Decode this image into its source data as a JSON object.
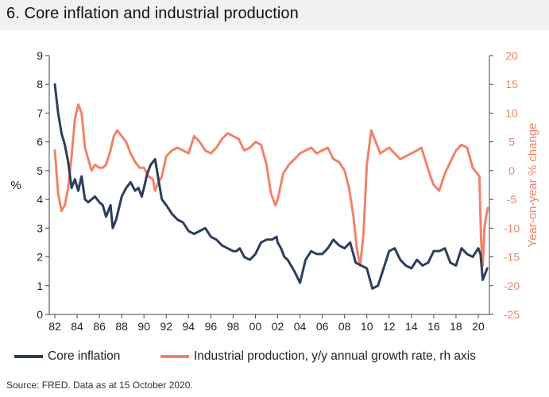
{
  "header": {
    "title": "6. Core inflation and industrial production"
  },
  "legend": {
    "items": [
      {
        "label": "Core inflation",
        "color": "#2d3e5c"
      },
      {
        "label": "Industrial production, y/y annual growth rate, rh axis",
        "color": "#f0836a"
      }
    ]
  },
  "footer": {
    "source": "Source: FRED. Data as at 15 October 2020."
  },
  "chart_data": {
    "type": "line",
    "title": "6. Core inflation and industrial production",
    "xlabel": "",
    "ylabel": "%",
    "y2label": "Year-on-year % change",
    "xlim": [
      1981.5,
      2021
    ],
    "ylim": [
      0,
      9
    ],
    "y2lim": [
      -25,
      20
    ],
    "grid": false,
    "legend_position": "bottom",
    "x_ticks": [
      1982,
      1984,
      1986,
      1988,
      1990,
      1992,
      1994,
      1996,
      1998,
      2000,
      2002,
      2004,
      2006,
      2008,
      2010,
      2012,
      2014,
      2016,
      2018,
      2020
    ],
    "x_tick_labels": [
      "82",
      "84",
      "86",
      "88",
      "90",
      "92",
      "94",
      "96",
      "98",
      "00",
      "02",
      "04",
      "06",
      "08",
      "10",
      "12",
      "14",
      "16",
      "18",
      "20"
    ],
    "y_ticks": [
      0,
      1,
      2,
      3,
      4,
      5,
      6,
      7,
      8,
      9
    ],
    "y_tick_labels": [
      "0",
      "1",
      "2",
      "3",
      "4",
      "5",
      "6",
      "7",
      "8",
      "9"
    ],
    "y2_ticks": [
      -25,
      -20,
      -15,
      -10,
      -5,
      0,
      5,
      10,
      15,
      20
    ],
    "y2_tick_labels": [
      "-25",
      "-20",
      "-15",
      "-10",
      "-5",
      "0",
      "5",
      "10",
      "15",
      "20"
    ],
    "series": [
      {
        "name": "Core inflation",
        "axis": "left",
        "color": "#2d3e5c",
        "x": [
          1982.0,
          1982.3,
          1982.6,
          1982.9,
          1983.2,
          1983.5,
          1983.8,
          1984.1,
          1984.4,
          1984.7,
          1985.0,
          1985.3,
          1985.6,
          1986.0,
          1986.3,
          1986.6,
          1987.0,
          1987.2,
          1987.5,
          1988.0,
          1988.4,
          1988.8,
          1989.2,
          1989.5,
          1989.8,
          1990.0,
          1990.3,
          1990.6,
          1991.0,
          1991.3,
          1991.6,
          1992.0,
          1992.5,
          1993.0,
          1993.5,
          1994.0,
          1994.5,
          1995.0,
          1995.5,
          1996.0,
          1996.5,
          1997.0,
          1997.5,
          1998.0,
          1998.3,
          1998.6,
          1999.0,
          1999.5,
          2000.0,
          2000.5,
          2001.0,
          2001.5,
          2001.9,
          2002.0,
          2002.3,
          2002.6,
          2002.9,
          2003.2,
          2003.5,
          2004.0,
          2004.5,
          2005.0,
          2005.5,
          2006.0,
          2006.5,
          2007.0,
          2007.5,
          2008.0,
          2008.5,
          2009.0,
          2009.5,
          2010.0,
          2010.5,
          2011.0,
          2011.5,
          2012.0,
          2012.5,
          2013.0,
          2013.5,
          2014.0,
          2014.5,
          2015.0,
          2015.5,
          2016.0,
          2016.5,
          2017.0,
          2017.5,
          2018.0,
          2018.5,
          2019.0,
          2019.5,
          2020.0,
          2020.2,
          2020.4,
          2020.6,
          2020.8
        ],
        "values": [
          8.0,
          7.0,
          6.3,
          5.9,
          5.3,
          4.4,
          4.7,
          4.3,
          4.8,
          4.0,
          3.9,
          4.0,
          4.1,
          3.9,
          3.8,
          3.4,
          3.8,
          3.0,
          3.3,
          4.1,
          4.4,
          4.6,
          4.3,
          4.4,
          4.1,
          4.4,
          4.9,
          5.2,
          5.4,
          4.7,
          4.0,
          3.8,
          3.5,
          3.3,
          3.2,
          2.9,
          2.8,
          2.9,
          3.0,
          2.7,
          2.6,
          2.4,
          2.3,
          2.2,
          2.2,
          2.3,
          2.0,
          1.9,
          2.1,
          2.5,
          2.6,
          2.6,
          2.7,
          2.5,
          2.3,
          2.0,
          1.9,
          1.7,
          1.5,
          1.1,
          1.9,
          2.2,
          2.1,
          2.1,
          2.3,
          2.6,
          2.4,
          2.3,
          2.5,
          1.8,
          1.7,
          1.6,
          0.9,
          1.0,
          1.6,
          2.2,
          2.3,
          1.9,
          1.7,
          1.6,
          1.9,
          1.7,
          1.8,
          2.2,
          2.2,
          2.3,
          1.8,
          1.7,
          2.3,
          2.1,
          2.0,
          2.3,
          2.1,
          1.2,
          1.4,
          1.6
        ]
      },
      {
        "name": "Industrial production, y/y annual growth rate, rh axis",
        "axis": "right",
        "color": "#f0836a",
        "x": [
          1982.0,
          1982.3,
          1982.6,
          1982.9,
          1983.2,
          1983.5,
          1983.8,
          1984.1,
          1984.4,
          1984.7,
          1985.0,
          1985.3,
          1985.6,
          1986.0,
          1986.3,
          1986.6,
          1987.0,
          1987.3,
          1987.6,
          1988.0,
          1988.4,
          1988.8,
          1989.2,
          1989.6,
          1990.0,
          1990.4,
          1990.8,
          1991.0,
          1991.3,
          1991.6,
          1992.0,
          1992.5,
          1993.0,
          1993.5,
          1994.0,
          1994.5,
          1995.0,
          1995.5,
          1996.0,
          1996.5,
          1997.0,
          1997.5,
          1998.0,
          1998.5,
          1999.0,
          1999.5,
          2000.0,
          2000.5,
          2001.0,
          2001.4,
          2001.8,
          2002.0,
          2002.5,
          2003.0,
          2003.5,
          2004.0,
          2004.5,
          2005.0,
          2005.5,
          2006.0,
          2006.5,
          2007.0,
          2007.5,
          2008.0,
          2008.4,
          2008.8,
          2009.1,
          2009.4,
          2009.7,
          2010.0,
          2010.4,
          2010.8,
          2011.2,
          2011.6,
          2012.0,
          2012.5,
          2013.0,
          2013.5,
          2014.0,
          2014.5,
          2014.9,
          2015.3,
          2015.7,
          2016.0,
          2016.5,
          2017.0,
          2017.5,
          2018.0,
          2018.5,
          2019.0,
          2019.5,
          2019.9,
          2020.1,
          2020.25,
          2020.4,
          2020.55,
          2020.7,
          2020.85
        ],
        "values": [
          3.5,
          -4.0,
          -7.0,
          -6.0,
          -3.0,
          2.5,
          9.0,
          11.5,
          10.0,
          4.0,
          2.0,
          0.0,
          1.0,
          0.5,
          0.5,
          1.0,
          3.5,
          6.0,
          7.0,
          6.0,
          5.0,
          3.0,
          1.5,
          0.5,
          0.5,
          -1.0,
          -1.5,
          -3.5,
          -2.0,
          -1.0,
          2.5,
          3.5,
          4.0,
          3.5,
          3.0,
          6.0,
          5.0,
          3.5,
          3.0,
          4.0,
          5.5,
          6.5,
          6.0,
          5.5,
          3.5,
          4.0,
          5.0,
          4.5,
          1.0,
          -4.0,
          -6.0,
          -5.0,
          -0.5,
          1.0,
          2.0,
          3.0,
          3.5,
          4.0,
          3.0,
          3.5,
          4.0,
          2.0,
          1.5,
          0.0,
          -3.0,
          -8.0,
          -13.5,
          -16.5,
          -11.0,
          1.0,
          7.0,
          5.0,
          3.0,
          3.5,
          4.0,
          3.0,
          2.0,
          2.5,
          3.0,
          3.5,
          4.0,
          1.5,
          -1.0,
          -2.5,
          -3.5,
          -0.5,
          1.5,
          3.5,
          4.5,
          4.0,
          0.5,
          -0.5,
          -1.0,
          -12.0,
          -16.5,
          -10.0,
          -8.0,
          -6.5
        ]
      }
    ]
  }
}
